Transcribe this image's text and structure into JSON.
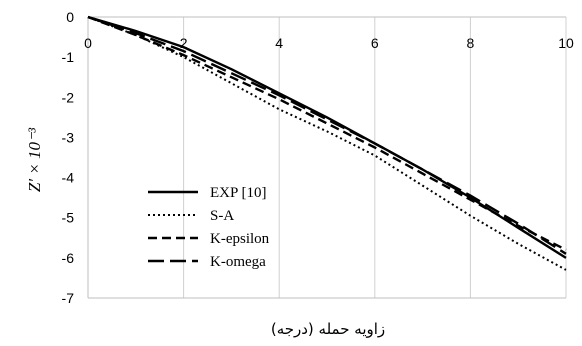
{
  "chart_data": {
    "type": "line",
    "title": "",
    "xlabel": "زاویه حمله (درجه)",
    "ylabel": "Z′ × 10⁻³",
    "xlim": [
      0,
      10
    ],
    "ylim": [
      -7,
      0
    ],
    "x_ticks": [
      "0",
      "2",
      "4",
      "6",
      "8",
      "10"
    ],
    "y_ticks": [
      "0",
      "-1",
      "-2",
      "-3",
      "-4",
      "-5",
      "-6",
      "-7"
    ],
    "grid": "vertical",
    "legend_position": "bottom-left",
    "series": [
      {
        "name": "EXP [10]",
        "style": "solid",
        "x": [
          0,
          1,
          2,
          3,
          4,
          5,
          6,
          7,
          8,
          9,
          10
        ],
        "y": [
          0,
          -0.35,
          -0.75,
          -1.3,
          -1.9,
          -2.5,
          -3.15,
          -3.8,
          -4.5,
          -5.25,
          -6.0
        ]
      },
      {
        "name": "S-A",
        "style": "dotted",
        "x": [
          0,
          1,
          2,
          3,
          4,
          5,
          6,
          7,
          8,
          9,
          10
        ],
        "y": [
          0,
          -0.45,
          -1.0,
          -1.65,
          -2.3,
          -2.85,
          -3.45,
          -4.2,
          -4.95,
          -5.65,
          -6.3
        ]
      },
      {
        "name": "K-epsilon",
        "style": "short-dash",
        "x": [
          0,
          1,
          2,
          3,
          4,
          5,
          6,
          7,
          8,
          9,
          10
        ],
        "y": [
          0,
          -0.45,
          -0.95,
          -1.5,
          -2.05,
          -2.65,
          -3.25,
          -3.9,
          -4.55,
          -5.2,
          -5.8
        ]
      },
      {
        "name": "K-omega",
        "style": "long-dash",
        "x": [
          0,
          1,
          2,
          3,
          4,
          5,
          6,
          7,
          8,
          9,
          10
        ],
        "y": [
          0,
          -0.4,
          -0.85,
          -1.4,
          -1.95,
          -2.55,
          -3.15,
          -3.8,
          -4.45,
          -5.15,
          -5.9
        ]
      }
    ],
    "colors": {
      "line": "#000000",
      "grid": "#d0d0d0",
      "axis": "#bfbfbf"
    }
  }
}
